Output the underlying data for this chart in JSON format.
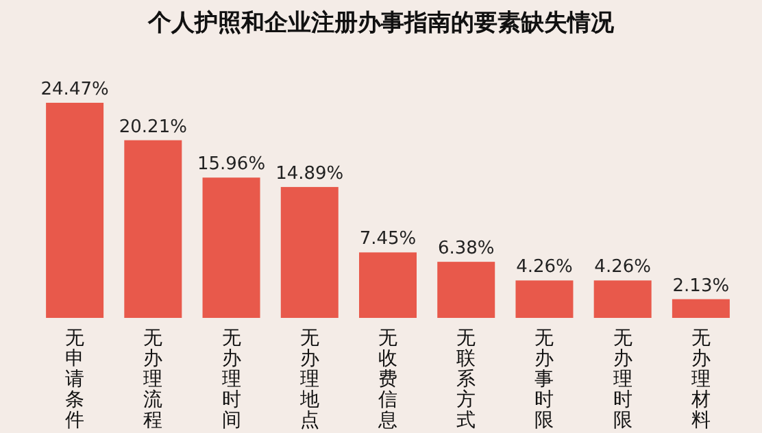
{
  "chart_data": {
    "type": "bar",
    "title": "个人护照和企业注册办事指南的要素缺失情况",
    "categories": [
      "无申请条件",
      "无办理流程",
      "无办理时间",
      "无办理地点",
      "无收费信息",
      "无联系方式",
      "无办事时限",
      "无办理时限",
      "无办理材料"
    ],
    "values": [
      24.47,
      20.21,
      15.96,
      14.89,
      7.45,
      6.38,
      4.26,
      4.26,
      2.13
    ],
    "value_labels": [
      "24.47%",
      "20.21%",
      "15.96%",
      "14.89%",
      "7.45%",
      "6.38%",
      "4.26%",
      "4.26%",
      "2.13%"
    ],
    "color": "#e8594b"
  }
}
